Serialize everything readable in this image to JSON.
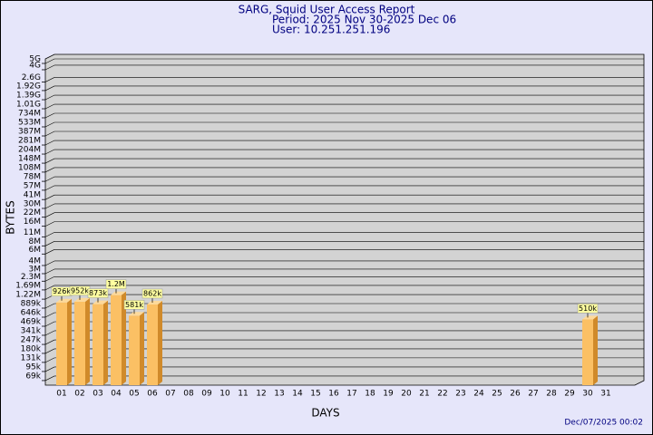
{
  "chart_data": {
    "type": "bar",
    "title": "SARG, Squid User Access Report",
    "subtitle": "Period: 2025 Nov 30-2025 Dec 06",
    "user": "User: 10.251.251.196",
    "footer": "Dec/07/2025 00:02",
    "x_label": "DAYS",
    "y_label": "BYTES",
    "categories": [
      "01",
      "02",
      "03",
      "04",
      "05",
      "06",
      "07",
      "08",
      "09",
      "10",
      "11",
      "12",
      "13",
      "14",
      "15",
      "16",
      "17",
      "18",
      "19",
      "20",
      "21",
      "22",
      "23",
      "24",
      "25",
      "26",
      "27",
      "28",
      "29",
      "30",
      "31"
    ],
    "values": [
      926000,
      952000,
      873000,
      1200000,
      581000,
      862000,
      null,
      null,
      null,
      null,
      null,
      null,
      null,
      null,
      null,
      null,
      null,
      null,
      null,
      null,
      null,
      null,
      null,
      null,
      null,
      null,
      null,
      null,
      null,
      510000,
      null
    ],
    "value_labels": [
      "926k",
      "952k",
      "873k",
      "1.2M",
      "581k",
      "862k",
      null,
      null,
      null,
      null,
      null,
      null,
      null,
      null,
      null,
      null,
      null,
      null,
      null,
      null,
      null,
      null,
      null,
      null,
      null,
      null,
      null,
      null,
      null,
      "510k",
      null
    ],
    "color": "#fbc064",
    "log_scale": true,
    "grid": true,
    "ylim": [
      50000,
      5000000000
    ],
    "yticks": [
      {
        "value": 69000,
        "label": "69k"
      },
      {
        "value": 95000,
        "label": "95k"
      },
      {
        "value": 131000,
        "label": "131k"
      },
      {
        "value": 180000,
        "label": "180k"
      },
      {
        "value": 247000,
        "label": "247k"
      },
      {
        "value": 341000,
        "label": "341k"
      },
      {
        "value": 469000,
        "label": "469k"
      },
      {
        "value": 646000,
        "label": "646k"
      },
      {
        "value": 889000,
        "label": "889k"
      },
      {
        "value": 1220000,
        "label": "1.22M"
      },
      {
        "value": 1690000,
        "label": "1.69M"
      },
      {
        "value": 2300000,
        "label": "2.3M"
      },
      {
        "value": 3000000,
        "label": "3M"
      },
      {
        "value": 4000000,
        "label": "4M"
      },
      {
        "value": 6000000,
        "label": "6M"
      },
      {
        "value": 8000000,
        "label": "8M"
      },
      {
        "value": 11000000,
        "label": "11M"
      },
      {
        "value": 16000000,
        "label": "16M"
      },
      {
        "value": 22000000,
        "label": "22M"
      },
      {
        "value": 30000000,
        "label": "30M"
      },
      {
        "value": 41000000,
        "label": "41M"
      },
      {
        "value": 57000000,
        "label": "57M"
      },
      {
        "value": 78000000,
        "label": "78M"
      },
      {
        "value": 108000000,
        "label": "108M"
      },
      {
        "value": 148000000,
        "label": "148M"
      },
      {
        "value": 204000000,
        "label": "204M"
      },
      {
        "value": 281000000,
        "label": "281M"
      },
      {
        "value": 387000000,
        "label": "387M"
      },
      {
        "value": 533000000,
        "label": "533M"
      },
      {
        "value": 734000000,
        "label": "734M"
      },
      {
        "value": 1010000000,
        "label": "1.01G"
      },
      {
        "value": 1390000000,
        "label": "1.39G"
      },
      {
        "value": 1920000000,
        "label": "1.92G"
      },
      {
        "value": 2600000000,
        "label": "2.6G"
      },
      {
        "value": 4000000000,
        "label": "4G"
      },
      {
        "value": 5000000000,
        "label": "5G"
      }
    ]
  }
}
